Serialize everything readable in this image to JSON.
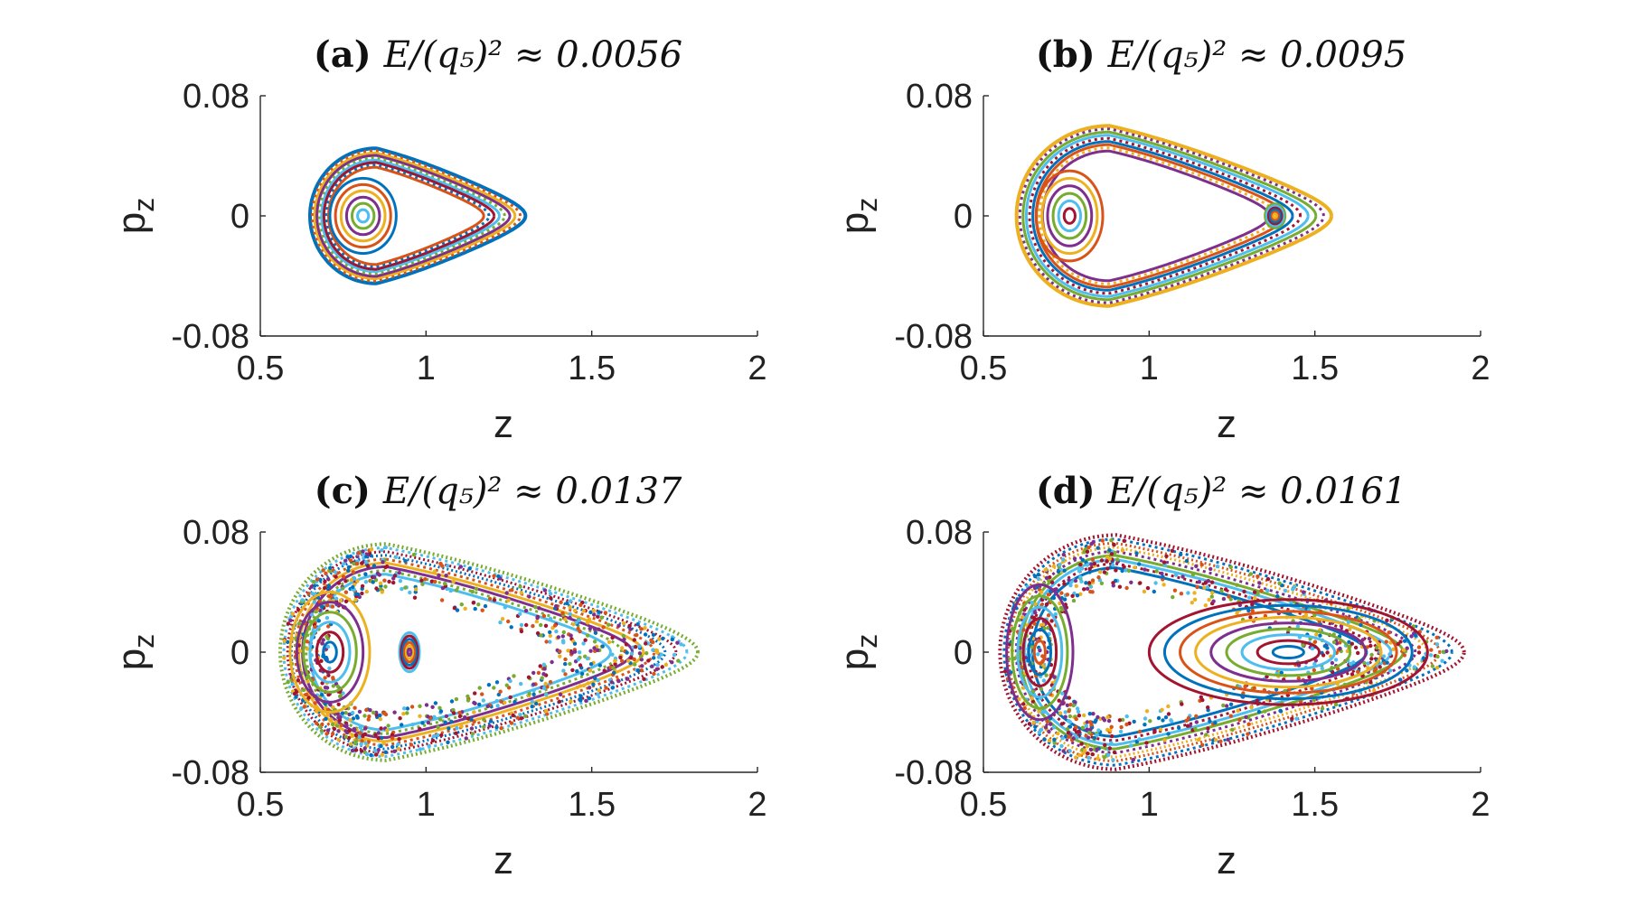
{
  "figure": {
    "colors": [
      "#0072BD",
      "#D95319",
      "#EDB120",
      "#7E2F8E",
      "#77AC30",
      "#4DBEEE",
      "#A2142F"
    ]
  },
  "chart_data": [
    {
      "type": "scatter",
      "panel": "a",
      "title_tag": "(a)",
      "title_math": "E/(q₅)² ≈ 0.0056",
      "xlabel": "z",
      "ylabel": "p_z",
      "xlim": [
        0.5,
        2
      ],
      "ylim": [
        -0.08,
        0.08
      ],
      "xticks": [
        "0.5",
        "1",
        "1.5",
        "2"
      ],
      "yticks": [
        "0.08",
        "0",
        "-0.08"
      ],
      "description": "Poincaré section: nested closed orbits",
      "boundary": {
        "z_min": 0.65,
        "z_max": 1.3,
        "pz_max": 0.045,
        "z_at_pz_max": 0.85
      },
      "islands": [
        {
          "z": 0.81,
          "pz": 0.0,
          "rz": 0.1,
          "rp": 0.025
        }
      ]
    },
    {
      "type": "scatter",
      "panel": "b",
      "title_tag": "(b)",
      "title_math": "E/(q₅)² ≈ 0.0095",
      "xlabel": "z",
      "ylabel": "p_z",
      "xlim": [
        0.5,
        2
      ],
      "ylim": [
        -0.08,
        0.08
      ],
      "xticks": [
        "0.5",
        "1",
        "1.5",
        "2"
      ],
      "yticks": [
        "0.08",
        "0",
        "-0.08"
      ],
      "description": "Poincaré section: regular orbits with resonance islands",
      "boundary": {
        "z_min": 0.6,
        "z_max": 1.55,
        "pz_max": 0.06,
        "z_at_pz_max": 0.88
      },
      "islands": [
        {
          "z": 0.76,
          "pz": 0.0,
          "rz": 0.1,
          "rp": 0.03
        },
        {
          "z": 1.38,
          "pz": 0.0,
          "rz": 0.03,
          "rp": 0.008
        }
      ]
    },
    {
      "type": "scatter",
      "panel": "c",
      "title_tag": "(c)",
      "title_math": "E/(q₅)² ≈ 0.0137",
      "xlabel": "z",
      "ylabel": "p_z",
      "xlim": [
        0.5,
        2
      ],
      "ylim": [
        -0.08,
        0.08
      ],
      "xticks": [
        "0.5",
        "1",
        "1.5",
        "2"
      ],
      "yticks": [
        "0.08",
        "0",
        "-0.08"
      ],
      "description": "Poincaré section: mixed regular and chaotic motion",
      "boundary": {
        "z_min": 0.56,
        "z_max": 1.82,
        "pz_max": 0.072,
        "z_at_pz_max": 0.88
      },
      "islands": [
        {
          "z": 0.71,
          "pz": 0.0,
          "rz": 0.12,
          "rp": 0.04
        },
        {
          "z": 0.95,
          "pz": 0.0,
          "rz": 0.03,
          "rp": 0.013
        }
      ]
    },
    {
      "type": "scatter",
      "panel": "d",
      "title_tag": "(d)",
      "title_math": "E/(q₅)² ≈ 0.0161",
      "xlabel": "z",
      "ylabel": "p_z",
      "xlim": [
        0.5,
        2
      ],
      "ylim": [
        -0.08,
        0.08
      ],
      "xticks": [
        "0.5",
        "1",
        "1.5",
        "2"
      ],
      "yticks": [
        "0.08",
        "0",
        "-0.08"
      ],
      "description": "Poincaré section: two island chains with chaotic layer",
      "boundary": {
        "z_min": 0.55,
        "z_max": 1.95,
        "pz_max": 0.078,
        "z_at_pz_max": 0.9
      },
      "islands": [
        {
          "z": 0.67,
          "pz": 0.0,
          "rz": 0.1,
          "rp": 0.045
        },
        {
          "z": 1.42,
          "pz": 0.0,
          "rz": 0.42,
          "rp": 0.035
        }
      ]
    }
  ]
}
